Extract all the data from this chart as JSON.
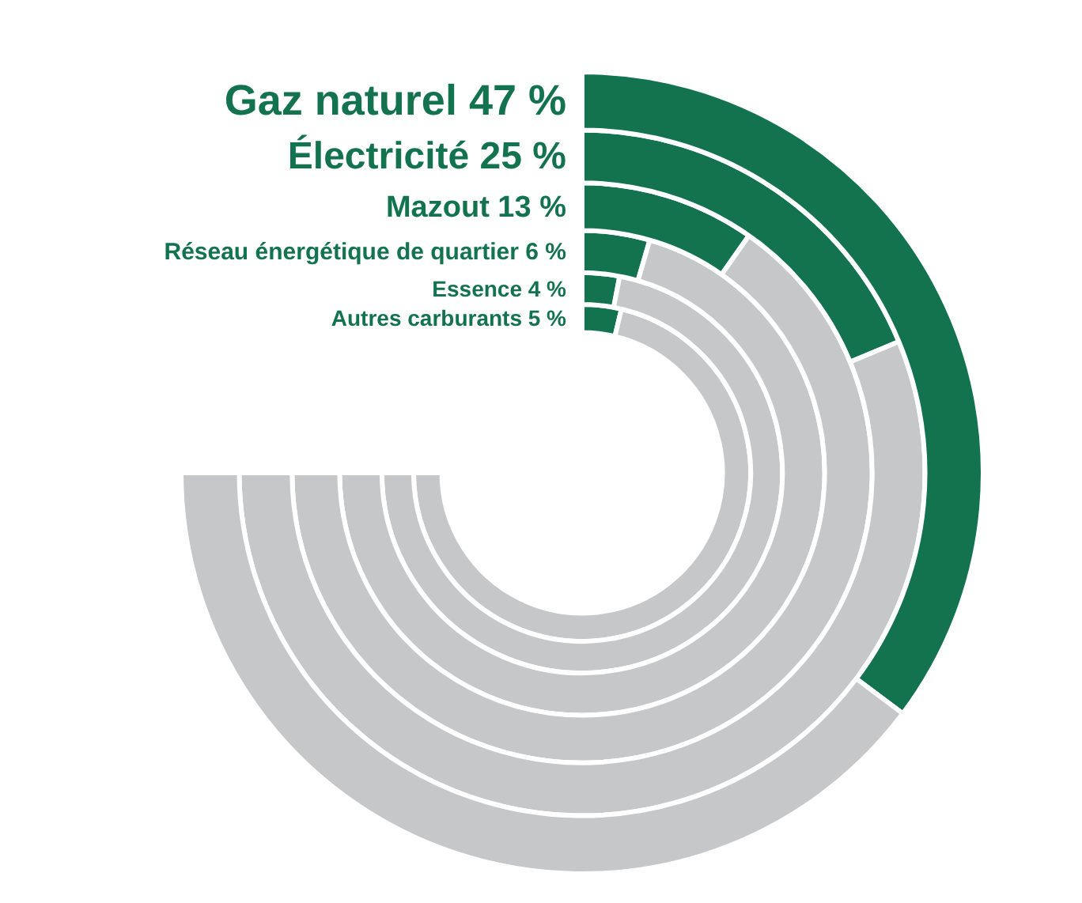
{
  "chart_data": {
    "type": "donut",
    "categories": [
      null,
      null
    ],
    "colors": [
      "#13734f",
      "#c6c7c9"
    ],
    "series": [
      {
        "name": "Gaz naturel",
        "values": [
          47,
          53
        ],
        "value_labels": [
          "47 %",
          null
        ]
      },
      {
        "name": "Électricité",
        "values": [
          25,
          75
        ],
        "value_labels": [
          "25 %",
          null
        ]
      },
      {
        "name": "Mazout",
        "values": [
          13,
          87
        ],
        "value_labels": [
          "13 %",
          null
        ]
      },
      {
        "name": "Réseau énergétique de quartier",
        "values": [
          6,
          94
        ],
        "value_labels": [
          "6 %",
          null
        ]
      },
      {
        "name": "Essence",
        "values": [
          4,
          96
        ],
        "value_labels": [
          "4 %",
          null
        ]
      },
      {
        "name": "Autres carburants",
        "values": [
          5,
          95
        ],
        "value_labels": [
          "5 %",
          null
        ]
      }
    ]
  }
}
